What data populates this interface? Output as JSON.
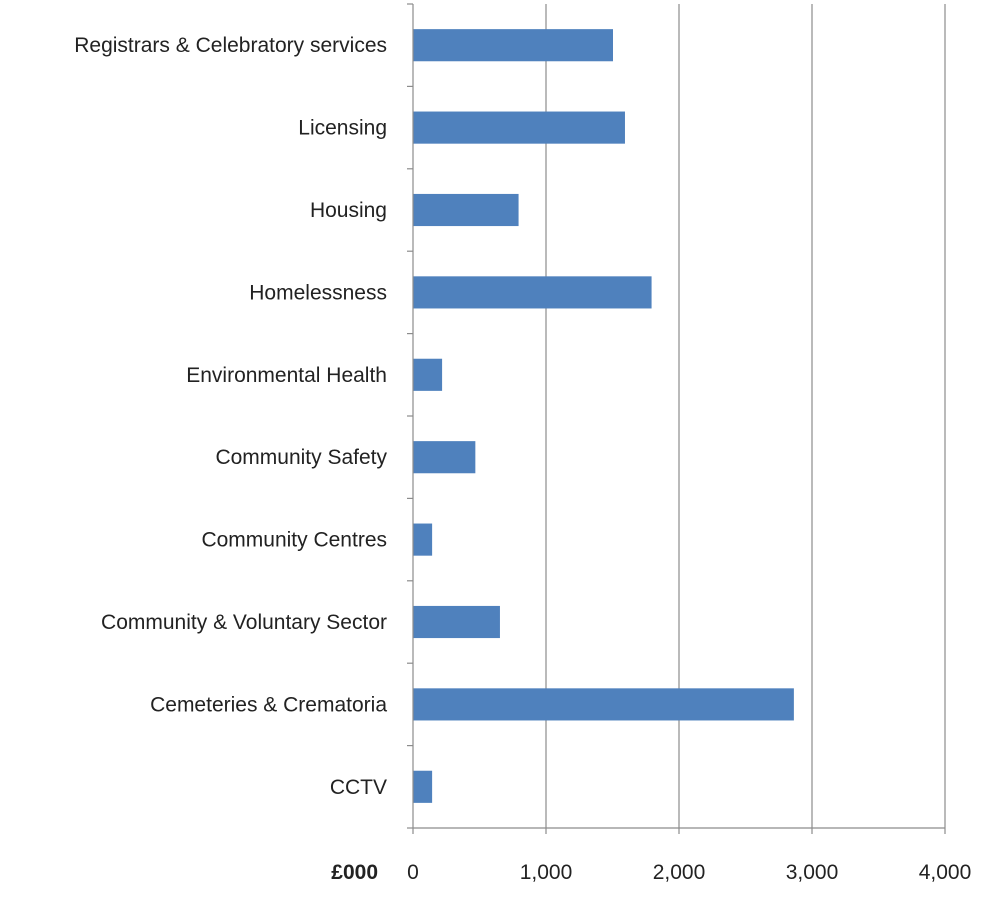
{
  "chart_data": {
    "type": "bar",
    "orientation": "horizontal",
    "categories": [
      "Registrars & Celebratory services",
      "Licensing",
      "Housing",
      "Homelessness",
      "Environmental Health",
      "Community Safety",
      "Community Centres",
      "Community & Voluntary Sector",
      "Cemeteries & Crematoria",
      "CCTV"
    ],
    "values": [
      1500,
      1590,
      790,
      1790,
      215,
      465,
      140,
      650,
      2860,
      140
    ],
    "xlim": [
      0,
      4000
    ],
    "xticks": [
      0,
      1000,
      2000,
      3000,
      4000
    ],
    "xtick_labels": [
      "0",
      "1,000",
      "2,000",
      "3,000",
      "4,000"
    ],
    "unit_label": "£000",
    "bar_color": "#4F81BD",
    "grid": true
  }
}
